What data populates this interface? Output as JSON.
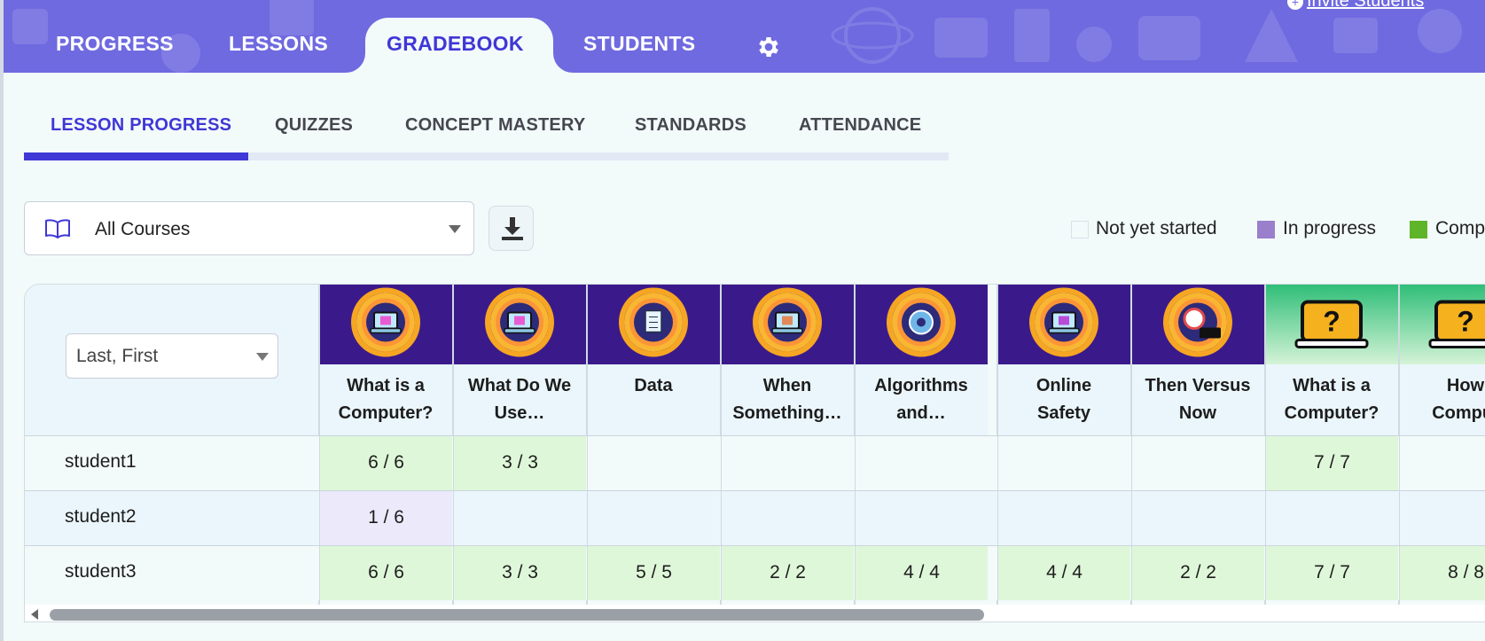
{
  "header": {
    "invite_label": "Invite Students",
    "tabs": [
      "PROGRESS",
      "LESSONS",
      "GRADEBOOK",
      "STUDENTS"
    ],
    "active_tab": "GRADEBOOK",
    "settings_icon": "gear-icon"
  },
  "subtabs": {
    "items": [
      "LESSON PROGRESS",
      "QUIZZES",
      "CONCEPT MASTERY",
      "STANDARDS",
      "ATTENDANCE"
    ],
    "active": "LESSON PROGRESS"
  },
  "filters": {
    "course_select_value": "All Courses",
    "course_icon": "book-icon",
    "download_icon": "download-icon",
    "sort_select_value": "Last, First"
  },
  "legend": {
    "items": [
      {
        "label": "Not yet started",
        "color": "#f3fafa"
      },
      {
        "label": "In progress",
        "color": "#9a7fcc"
      },
      {
        "label": "Comp",
        "color": "#5fb52a"
      }
    ]
  },
  "colors": {
    "accent": "#3f37d6",
    "header_bg": "#6f6ae0",
    "complete_cell": "#dff7d9",
    "in_progress_cell": "#ece9fb"
  },
  "columns": [
    {
      "title": "What is a\nComputer?",
      "theme": "purple",
      "icon": "laptop-question-icon"
    },
    {
      "title": "What Do We\nUse…",
      "theme": "purple",
      "icon": "laptop-questions-icon"
    },
    {
      "title": "Data",
      "theme": "purple",
      "icon": "document-circuit-icon"
    },
    {
      "title": "When\nSomething…",
      "theme": "purple",
      "icon": "laptop-bandage-icon"
    },
    {
      "title": "Algorithms\nand…",
      "theme": "purple",
      "icon": "gear-circuit-icon"
    },
    {
      "title": "Online\nSafety",
      "theme": "purple",
      "icon": "laptop-shield-icon"
    },
    {
      "title": "Then Versus\nNow",
      "theme": "purple",
      "icon": "clock-icon"
    },
    {
      "title": "What is a\nComputer?",
      "theme": "green",
      "icon": "laptop-question-icon"
    },
    {
      "title": "How\nComput",
      "theme": "green",
      "icon": "laptop-gears-icon"
    }
  ],
  "rows": [
    {
      "name": "student1",
      "cells": [
        "6 / 6",
        "3 / 3",
        "",
        "",
        "",
        "",
        "",
        "7 / 7",
        ""
      ],
      "status": [
        "complete",
        "complete",
        "",
        "",
        "",
        "",
        "",
        "complete",
        ""
      ]
    },
    {
      "name": "student2",
      "cells": [
        "1 / 6",
        "",
        "",
        "",
        "",
        "",
        "",
        "",
        ""
      ],
      "status": [
        "inprogress",
        "",
        "",
        "",
        "",
        "",
        "",
        "",
        ""
      ]
    },
    {
      "name": "student3",
      "cells": [
        "6 / 6",
        "3 / 3",
        "5 / 5",
        "2 / 2",
        "4 / 4",
        "4 / 4",
        "2 / 2",
        "7 / 7",
        "8 / 8"
      ],
      "status": [
        "complete",
        "complete",
        "complete",
        "complete",
        "complete",
        "complete",
        "complete",
        "complete",
        "complete"
      ]
    }
  ]
}
